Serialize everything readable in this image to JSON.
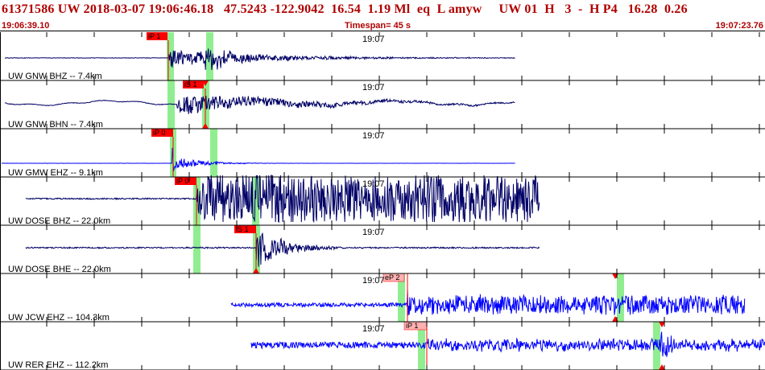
{
  "header": {
    "title": "61371586 UW 2018-03-07 19:06:46.18   47.5243 -122.9042  16.54  1.19 Ml  eq  L amyw     UW 01  H   3  -  H P4   16.28  0.26",
    "time_left": "19:06:39.10",
    "timespan": "Timespan=  45 s",
    "time_right": "19:07:23.76"
  },
  "colors": {
    "header_text": "#b00000",
    "trace_dark": "#000066",
    "trace_blue": "#0000ff",
    "pick": "#ff0000",
    "pick_light": "#ffb0b0",
    "window": "#90ee90"
  },
  "panels": [
    {
      "label": "UW GNW BHZ -- 7.4km",
      "time": "19:07",
      "color": "dark",
      "picks": [
        {
          "text": "iP 1",
          "style": "red"
        }
      ],
      "top_arrow": false,
      "bottom_arrow": false
    },
    {
      "label": "UW GNW BHN -- 7.4km",
      "time": "19:07",
      "color": "dark",
      "picks": [
        {
          "text": "iS 1",
          "style": "red"
        }
      ],
      "top_arrow": true,
      "bottom_arrow": true
    },
    {
      "label": "UW GMW EHZ -- 9.1km",
      "time": "19:07",
      "color": "blue",
      "picks": [
        {
          "text": "iP 0",
          "style": "red"
        }
      ],
      "top_arrow": false,
      "bottom_arrow": false
    },
    {
      "label": "UW DOSE BHZ -- 22.0km",
      "time": "19:07",
      "color": "dark",
      "picks": [
        {
          "text": "iP 0",
          "style": "red"
        }
      ],
      "top_arrow": false,
      "bottom_arrow": false
    },
    {
      "label": "UW DOSE BHE -- 22.0km",
      "time": "19:07",
      "color": "dark",
      "picks": [
        {
          "text": "iS 1",
          "style": "red"
        }
      ],
      "top_arrow": false,
      "bottom_arrow": true
    },
    {
      "label": "UW JCW EHZ -- 104.3km",
      "time": "19:07",
      "color": "blue",
      "picks": [
        {
          "text": "eP 2",
          "style": "light"
        }
      ],
      "top_arrow": true,
      "bottom_arrow": true
    },
    {
      "label": "UW RER EHZ -- 112.2km",
      "time": "19:07",
      "color": "blue",
      "picks": [
        {
          "text": "iP 1",
          "style": "light"
        }
      ],
      "top_arrow": true,
      "bottom_arrow": true
    }
  ]
}
